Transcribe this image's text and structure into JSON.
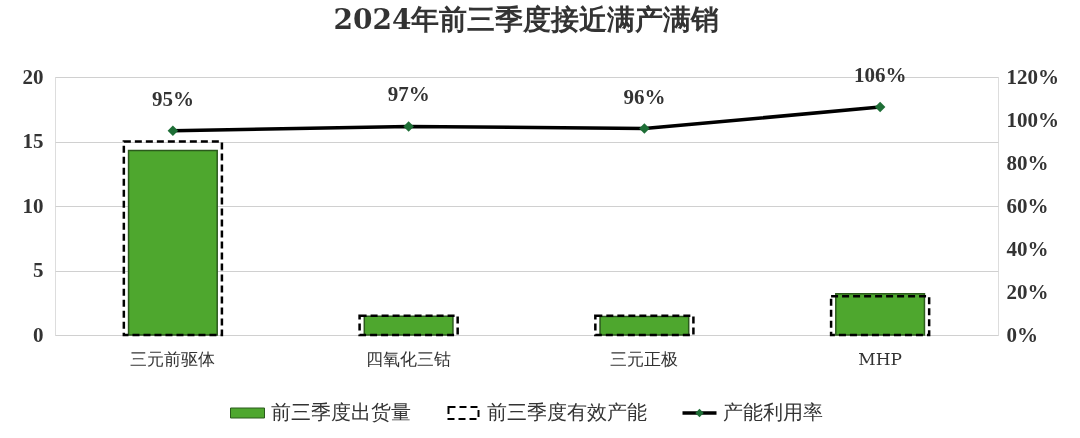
{
  "chart_data": {
    "type": "bar",
    "title": "2024年前三季度接近满产满销",
    "categories": [
      "三元前驱体",
      "四氧化三钴",
      "三元正极",
      "MHP"
    ],
    "series": [
      {
        "name": "前三季度出货量",
        "color": "#4ea72e",
        "values": [
          14.3,
          1.45,
          1.44,
          3.2
        ]
      },
      {
        "name": "前三季度有效产能",
        "color": "#000000",
        "line_style": "dashed",
        "values": [
          15,
          1.5,
          1.5,
          3.0
        ]
      },
      {
        "name": "产能利用率",
        "type": "line",
        "axis": "y2",
        "color": "#000000",
        "colors": [
          "#1e6e36",
          "#1e6e36",
          "#1e6e36",
          "#1e6e36"
        ],
        "marker": "diamond",
        "values": [
          95,
          97,
          96,
          106
        ],
        "value_labels": [
          "95%",
          "97%",
          "96%",
          "106%"
        ]
      }
    ],
    "ylim": [
      0,
      20
    ],
    "yticks": [
      0,
      5,
      10,
      15,
      20
    ],
    "y2lim": [
      0,
      120
    ],
    "y2ticks": [
      {
        "value": 0,
        "label": "0%"
      },
      {
        "value": 20,
        "label": "20%"
      },
      {
        "value": 40,
        "label": "40%"
      },
      {
        "value": 60,
        "label": "60%"
      },
      {
        "value": 80,
        "label": "80%"
      },
      {
        "value": 100,
        "label": "100%"
      },
      {
        "value": 120,
        "label": "120%"
      }
    ],
    "grid": "y",
    "legend": "bottom"
  }
}
